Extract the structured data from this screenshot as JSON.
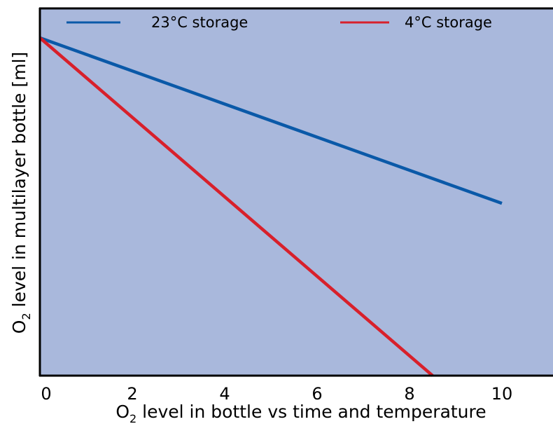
{
  "chart_data": {
    "type": "line",
    "title": "",
    "xlabel_main": "O",
    "xlabel_sub": "2",
    "xlabel_rest": " level in bottle vs time and temperature",
    "ylabel_main": "O",
    "ylabel_sub": "2",
    "ylabel_rest": " level in multilayer bottle [ml]",
    "xlim": [
      0,
      11.1
    ],
    "xticks": [
      "0",
      "2",
      "4",
      "6",
      "8",
      "10"
    ],
    "yticks": [],
    "grid": false,
    "legend_position": "top",
    "series": [
      {
        "name": "23°C storage",
        "color": "#0a59a8",
        "x": [
          0,
          10
        ],
        "y": [
          1.0,
          0.51
        ]
      },
      {
        "name": "4°C storage",
        "color": "#d8202b",
        "x": [
          0,
          8.5
        ],
        "y": [
          1.0,
          0.0
        ]
      }
    ]
  },
  "colors": {
    "plot_background": "#a9b8dc",
    "axis": "#000000"
  }
}
